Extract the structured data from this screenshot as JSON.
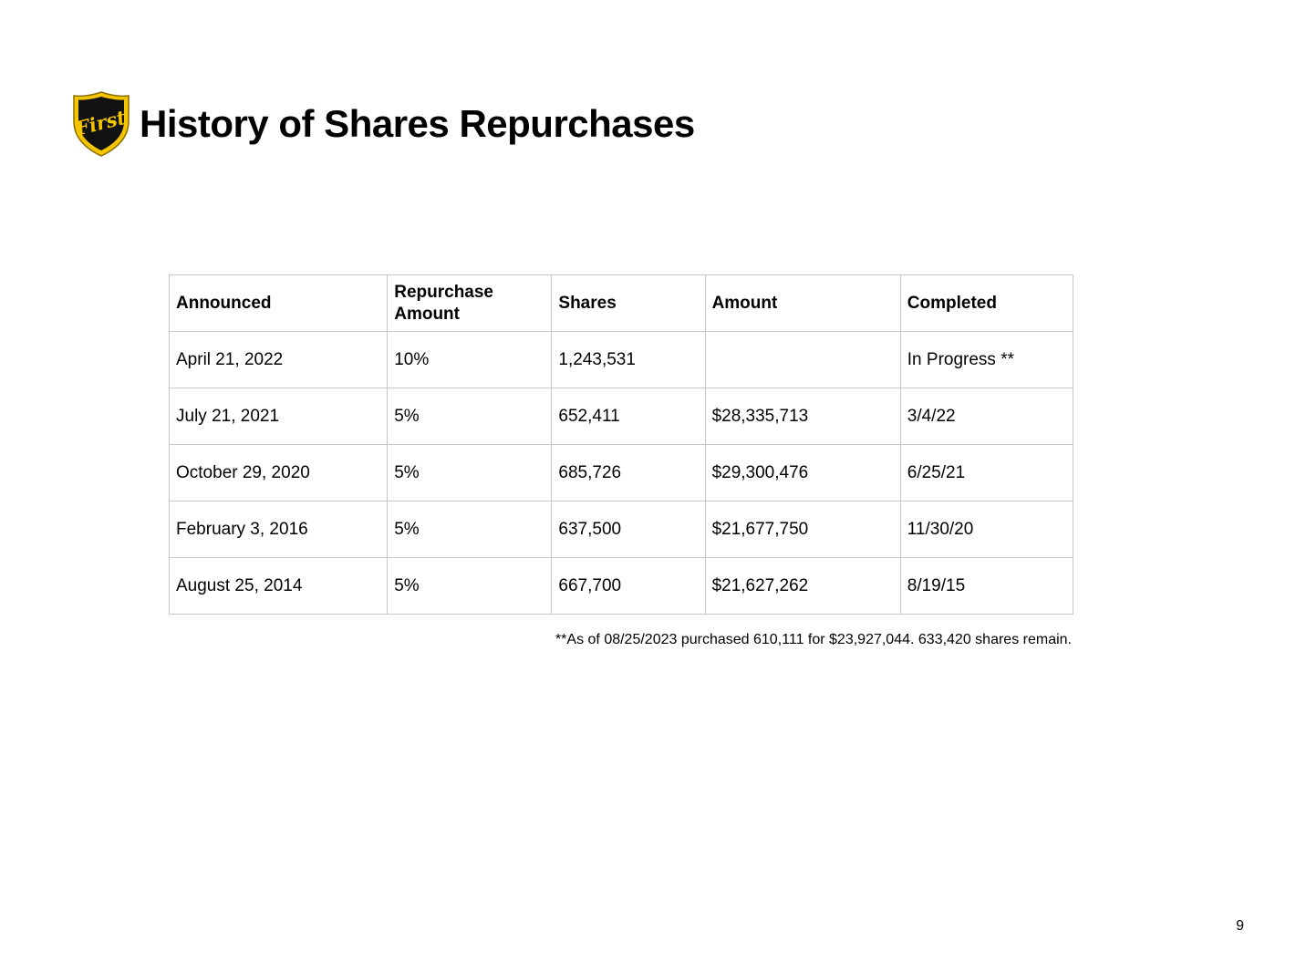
{
  "header": {
    "logo_text": "First",
    "title": "History of Shares Repurchases"
  },
  "table": {
    "columns": [
      "Announced",
      "Repurchase Amount",
      "Shares",
      "Amount",
      "Completed"
    ],
    "rows": [
      [
        "April 21, 2022",
        "10%",
        "1,243,531",
        "",
        "In Progress **"
      ],
      [
        "July 21, 2021",
        "5%",
        "652,411",
        "$28,335,713",
        "3/4/22"
      ],
      [
        "October 29, 2020",
        "5%",
        "685,726",
        "$29,300,476",
        "6/25/21"
      ],
      [
        "February 3, 2016",
        "5%",
        "637,500",
        "$21,677,750",
        "11/30/20"
      ],
      [
        "August 25, 2014",
        "5%",
        "667,700",
        "$21,627,262",
        "8/19/15"
      ]
    ]
  },
  "footnote": "**As of 08/25/2023 purchased 610,111 for $23,927,044. 633,420 shares remain.",
  "page_number": "9",
  "colors": {
    "logo_gold": "#f2c500",
    "logo_black": "#111111",
    "border": "#c8c8c8"
  }
}
